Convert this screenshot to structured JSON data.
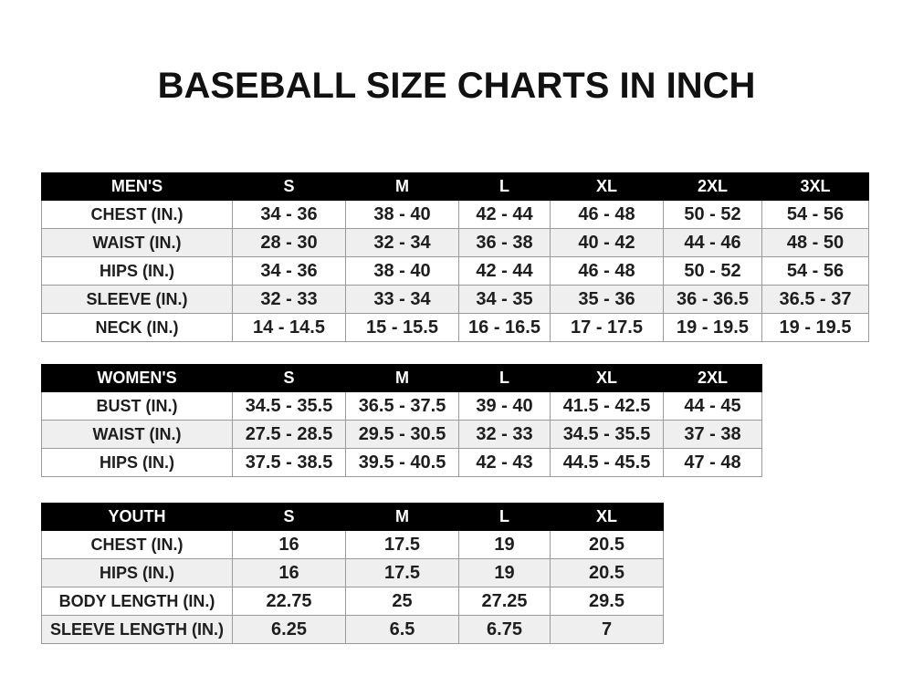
{
  "title": "BASEBALL SIZE CHARTS IN INCH",
  "tables": {
    "men": {
      "header": [
        "MEN'S",
        "S",
        "M",
        "L",
        "XL",
        "2XL",
        "3XL"
      ],
      "rows": [
        [
          "CHEST (IN.)",
          "34 - 36",
          "38 - 40",
          "42 - 44",
          "46 - 48",
          "50 - 52",
          "54 - 56"
        ],
        [
          "WAIST (IN.)",
          "28 - 30",
          "32 - 34",
          "36 - 38",
          "40 - 42",
          "44 - 46",
          "48 - 50"
        ],
        [
          "HIPS (IN.)",
          "34 - 36",
          "38 - 40",
          "42 - 44",
          "46 - 48",
          "50 - 52",
          "54 - 56"
        ],
        [
          "SLEEVE (IN.)",
          "32 - 33",
          "33 - 34",
          "34 - 35",
          "35 - 36",
          "36 - 36.5",
          "36.5 - 37"
        ],
        [
          "NECK (IN.)",
          "14 - 14.5",
          "15 - 15.5",
          "16 - 16.5",
          "17 - 17.5",
          "19 - 19.5",
          "19 - 19.5"
        ]
      ]
    },
    "women": {
      "header": [
        "WOMEN'S",
        "S",
        "M",
        "L",
        "XL",
        "2XL"
      ],
      "rows": [
        [
          "BUST (IN.)",
          "34.5 - 35.5",
          "36.5 - 37.5",
          "39 - 40",
          "41.5 - 42.5",
          "44 - 45"
        ],
        [
          "WAIST (IN.)",
          "27.5 - 28.5",
          "29.5 - 30.5",
          "32 - 33",
          "34.5 - 35.5",
          "37 - 38"
        ],
        [
          "HIPS (IN.)",
          "37.5 - 38.5",
          "39.5 - 40.5",
          "42 - 43",
          "44.5 - 45.5",
          "47 - 48"
        ]
      ]
    },
    "youth": {
      "header": [
        "YOUTH",
        "S",
        "M",
        "L",
        "XL"
      ],
      "rows": [
        [
          "CHEST (IN.)",
          "16",
          "17.5",
          "19",
          "20.5"
        ],
        [
          "HIPS (IN.)",
          "16",
          "17.5",
          "19",
          "20.5"
        ],
        [
          "BODY LENGTH (IN.)",
          "22.75",
          "25",
          "27.25",
          "29.5"
        ],
        [
          "SLEEVE LENGTH (IN.)",
          "6.25",
          "6.5",
          "6.75",
          "7"
        ]
      ]
    }
  }
}
